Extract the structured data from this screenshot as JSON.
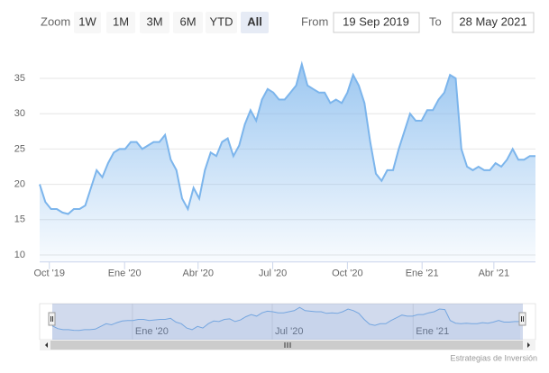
{
  "chart_data": {
    "type": "area",
    "series": [
      {
        "color": "#7cb5ec",
        "values": [
          20,
          17.5,
          16.5,
          16.5,
          16,
          15.8,
          16.5,
          16.5,
          17,
          19.5,
          22,
          21,
          23,
          24.5,
          25,
          25,
          26,
          26,
          25,
          25.5,
          26,
          26,
          27,
          23.5,
          22,
          18,
          16.5,
          19.5,
          18,
          22,
          24.5,
          24,
          26,
          26.5,
          24,
          25.5,
          28.5,
          30.5,
          29,
          32,
          33.5,
          33,
          32,
          32,
          33,
          34,
          37,
          34,
          33.5,
          33,
          33,
          31.5,
          32,
          31.5,
          33,
          35.5,
          34,
          31.5,
          26,
          21.5,
          20.5,
          22,
          22,
          25,
          27.5,
          30,
          29,
          29,
          30.5,
          30.5,
          32,
          33,
          35.5,
          35,
          25,
          22.5,
          22,
          22.5,
          22,
          22,
          23,
          22.5,
          23.5,
          25,
          23.5,
          23.5,
          24,
          24
        ]
      }
    ],
    "xlim": [
      0,
      87
    ],
    "xticks": [
      {
        "value": 1.7,
        "label": "Oct '19"
      },
      {
        "value": 14.9,
        "label": "Ene '20"
      },
      {
        "value": 27.8,
        "label": "Abr '20"
      },
      {
        "value": 40.9,
        "label": "Jul '20"
      },
      {
        "value": 54,
        "label": "Oct '20"
      },
      {
        "value": 67.1,
        "label": "Ene '21"
      },
      {
        "value": 79.7,
        "label": "Abr '21"
      }
    ],
    "ylim": [
      9,
      38
    ],
    "yticks": [
      10,
      15,
      20,
      25,
      30,
      35
    ],
    "grid": true,
    "navigator": {
      "xticks": [
        {
          "value": 14.9,
          "label": "Ene '20"
        },
        {
          "value": 40.9,
          "label": "Jul '20"
        },
        {
          "value": 67.1,
          "label": "Ene '21"
        }
      ]
    }
  },
  "range_selector": {
    "zoom_label": "Zoom",
    "buttons": [
      "1W",
      "1M",
      "3M",
      "6M",
      "YTD",
      "All"
    ],
    "selected": "All",
    "from_label": "From",
    "from": "19 Sep 2019",
    "to_label": "To",
    "to": "28 May 2021"
  },
  "credits": "Estrategias de Inversión"
}
